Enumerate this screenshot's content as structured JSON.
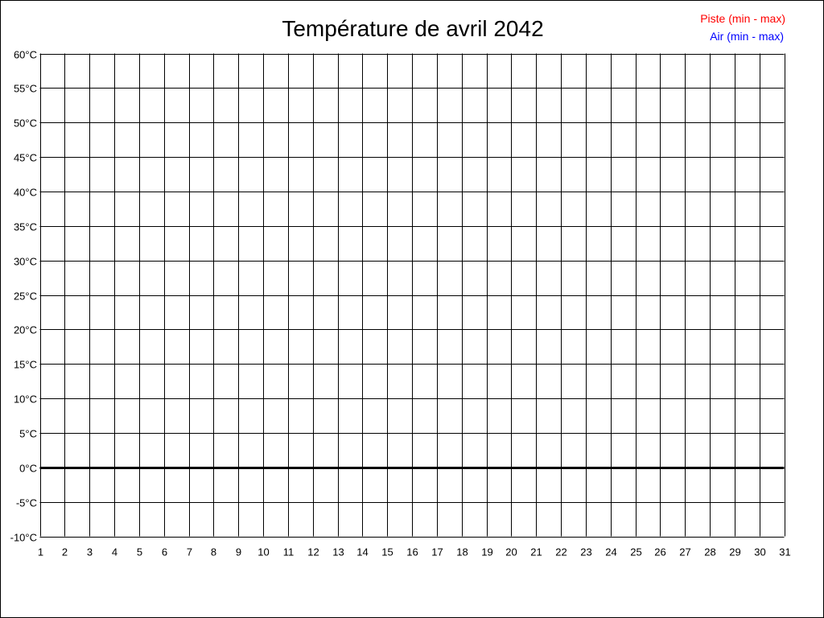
{
  "chart_data": {
    "type": "line",
    "title": "Température de avril 2042",
    "xlabel": "",
    "ylabel": "",
    "x_ticks": [
      "1",
      "2",
      "3",
      "4",
      "5",
      "6",
      "7",
      "8",
      "9",
      "10",
      "11",
      "12",
      "13",
      "14",
      "15",
      "16",
      "17",
      "18",
      "19",
      "20",
      "21",
      "22",
      "23",
      "24",
      "25",
      "26",
      "27",
      "28",
      "29",
      "30",
      "31"
    ],
    "y_ticks": [
      "60°C",
      "55°C",
      "50°C",
      "45°C",
      "40°C",
      "35°C",
      "30°C",
      "25°C",
      "20°C",
      "15°C",
      "10°C",
      "5°C",
      "0°C",
      "-5°C",
      "-10°C"
    ],
    "xlim": [
      1,
      31
    ],
    "ylim": [
      -10,
      60
    ],
    "y_step": 5,
    "grid": true,
    "zero_line": true,
    "legend_position": "top-right",
    "series": [
      {
        "name": "Piste (min - max)",
        "color": "#ff0000",
        "values": []
      },
      {
        "name": "Air (min - max)",
        "color": "#0000ff",
        "values": []
      }
    ]
  }
}
